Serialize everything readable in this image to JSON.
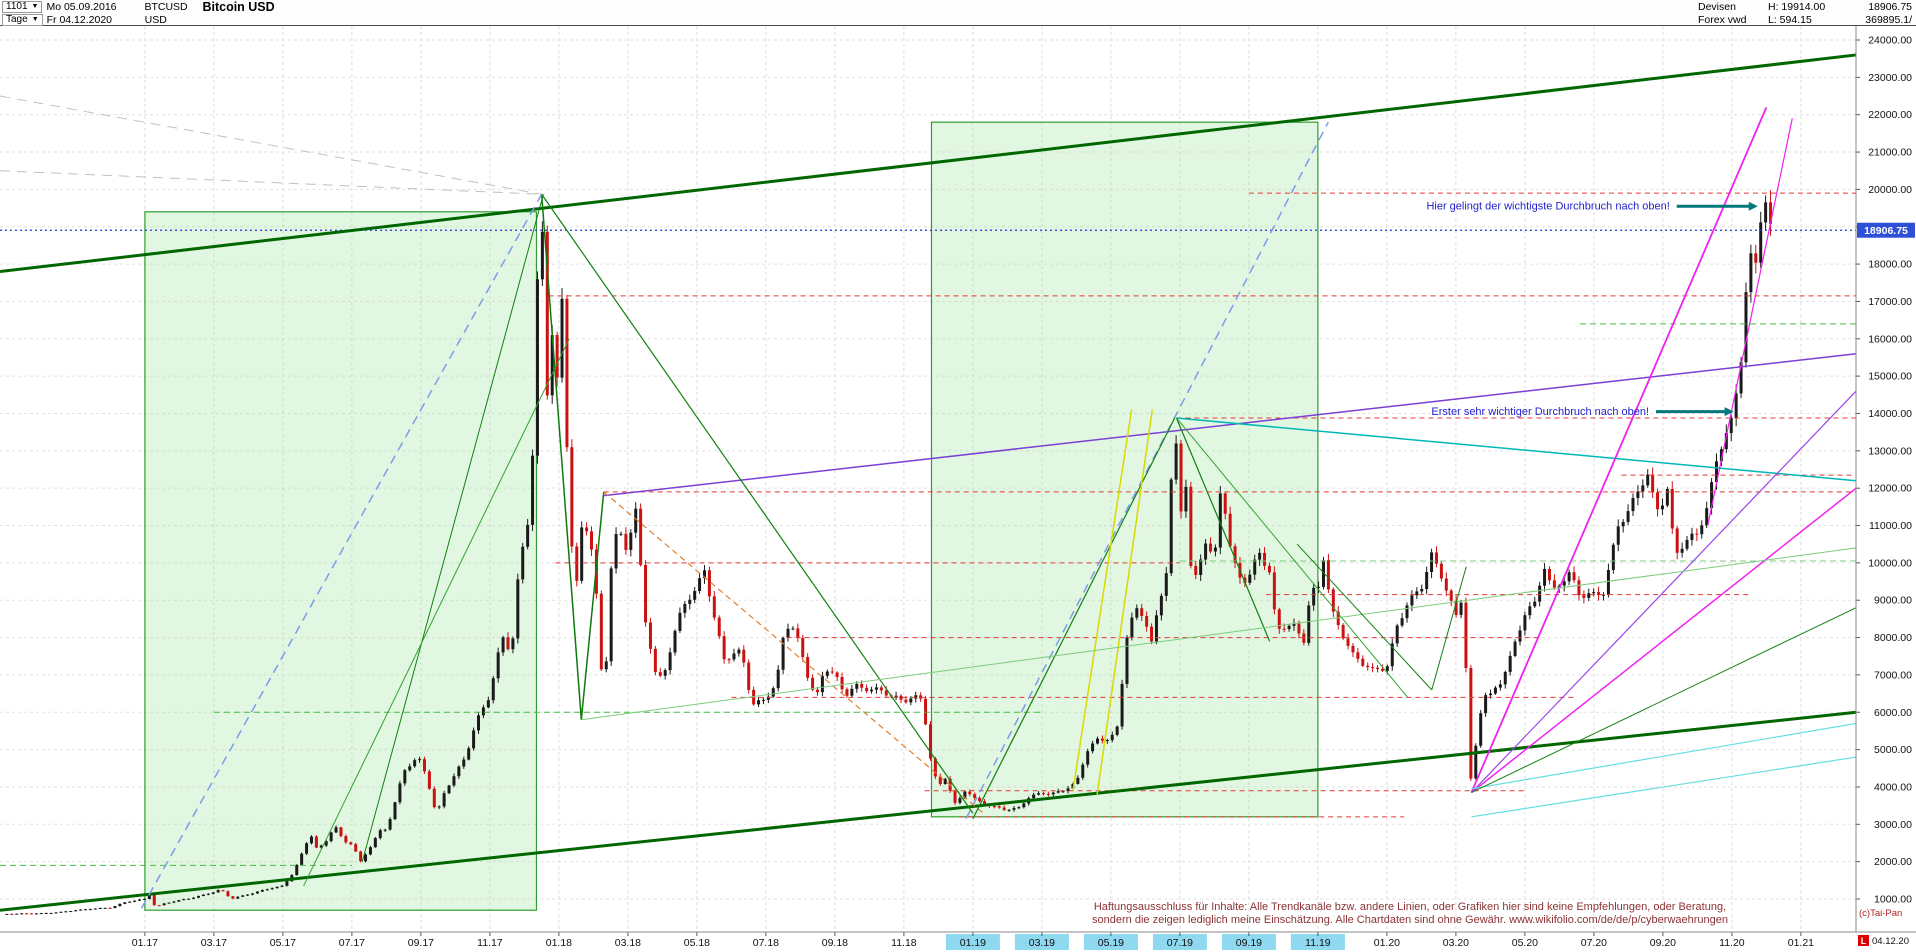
{
  "header": {
    "row1": {
      "id": "1101",
      "date": "Mo 05.09.2016",
      "symbol": "BTCUSD",
      "title": "Bitcoin USD",
      "group": "Devisen",
      "high": "H: 19914.00",
      "last": "18906.75"
    },
    "row2": {
      "period": "Tage",
      "date": "Fr 04.12.2020",
      "currency": "USD",
      "feed": "Forex vwd",
      "low": "L: 594.15",
      "volume": "369895.1/"
    }
  },
  "price_badge": {
    "value": "18906.75",
    "bg": "#2f4fd6",
    "fg": "#ffffff"
  },
  "last_bar_marker": {
    "label": "L",
    "date": "04.12.20",
    "color": "#dd0000"
  },
  "watermark": {
    "text": "(c)Tai-Pan",
    "color": "#b22222"
  },
  "disclaimer": {
    "color": "#8b3333",
    "line1": "Haftungsausschluss für Inhalte: Alle Trendkanäle bzw. andere Linien, oder Grafiken hier sind keine Empfehlungen, oder Beratung,",
    "line2": "sondern die zeigen lediglich meine  Einschätzung. Alle Chartdaten sind ohne Gewähr.  www.wikifolio.com/de/de/p/cyberwaehrungen"
  },
  "chart_data": {
    "type": "candlestick",
    "title": "Bitcoin USD",
    "symbol": "BTCUSD",
    "period": "Tage (daily)",
    "x_origin": "2016-09",
    "x_end": "2020-12-04",
    "y_axis": {
      "min": 1000,
      "max": 24000,
      "step": 1000,
      "format": "0.00"
    },
    "x_labels": [
      "01.17",
      "03.17",
      "05.17",
      "07.17",
      "09.17",
      "11.17",
      "01.18",
      "03.18",
      "05.18",
      "07.18",
      "09.18",
      "11.18",
      "01.19",
      "03.19",
      "05.19",
      "07.19",
      "09.19",
      "11.19",
      "01.20",
      "03.20",
      "05.20",
      "07.20",
      "09.20",
      "11.20",
      "01.21"
    ],
    "x_labels_highlighted": [
      "01.19",
      "03.19",
      "05.19",
      "07.19",
      "09.19",
      "11.19"
    ],
    "highlight_color": "#8ed8f0",
    "last": {
      "date": "04.12.2020",
      "close": 18906.75,
      "session_high": 19914.0,
      "session_low": 594.15
    },
    "candle_colors": {
      "up": "#1a1a1a",
      "down": "#cc1111"
    },
    "price_path_months_price": [
      [
        0,
        600
      ],
      [
        0.5,
        612
      ],
      [
        1,
        616
      ],
      [
        1.5,
        645
      ],
      [
        2,
        700
      ],
      [
        2.5,
        742
      ],
      [
        3,
        768
      ],
      [
        3.4,
        905
      ],
      [
        3.7,
        960
      ],
      [
        4,
        998
      ],
      [
        4.12,
        1130
      ],
      [
        4.3,
        784
      ],
      [
        4.6,
        893
      ],
      [
        5,
        965
      ],
      [
        5.5,
        1058
      ],
      [
        6,
        1190
      ],
      [
        6.2,
        1255
      ],
      [
        6.5,
        1005
      ],
      [
        6.8,
        1080
      ],
      [
        7.3,
        1200
      ],
      [
        7.6,
        1285
      ],
      [
        8,
        1348
      ],
      [
        8.3,
        1700
      ],
      [
        8.6,
        2310
      ],
      [
        8.8,
        2760
      ],
      [
        9,
        2300
      ],
      [
        9.25,
        2550
      ],
      [
        9.5,
        2980
      ],
      [
        9.75,
        2545
      ],
      [
        10,
        2480
      ],
      [
        10.25,
        1990
      ],
      [
        10.5,
        2350
      ],
      [
        10.8,
        2810
      ],
      [
        11,
        2875
      ],
      [
        11.2,
        3420
      ],
      [
        11.5,
        4420
      ],
      [
        11.8,
        4715
      ],
      [
        12,
        4700
      ],
      [
        12.2,
        4160
      ],
      [
        12.45,
        3230
      ],
      [
        12.7,
        3905
      ],
      [
        13,
        4350
      ],
      [
        13.3,
        4820
      ],
      [
        13.6,
        5740
      ],
      [
        14,
        6460
      ],
      [
        14.2,
        7410
      ],
      [
        14.45,
        8210
      ],
      [
        14.6,
        7300
      ],
      [
        14.85,
        9900
      ],
      [
        15.2,
        11640
      ],
      [
        15.35,
        16870
      ],
      [
        15.5,
        19870
      ],
      [
        15.62,
        13820
      ],
      [
        15.78,
        16720
      ],
      [
        15.9,
        14100
      ],
      [
        16.1,
        17150
      ],
      [
        16.3,
        11220
      ],
      [
        16.5,
        9260
      ],
      [
        16.7,
        11310
      ],
      [
        17,
        10200
      ],
      [
        17.15,
        8320
      ],
      [
        17.3,
        6060
      ],
      [
        17.5,
        9820
      ],
      [
        17.7,
        10930
      ],
      [
        18,
        10300
      ],
      [
        18.2,
        11650
      ],
      [
        18.5,
        8520
      ],
      [
        18.8,
        7010
      ],
      [
        19,
        6900
      ],
      [
        19.3,
        7910
      ],
      [
        19.6,
        8910
      ],
      [
        20,
        9250
      ],
      [
        20.2,
        9950
      ],
      [
        20.5,
        8510
      ],
      [
        20.8,
        7420
      ],
      [
        21,
        7500
      ],
      [
        21.3,
        7660
      ],
      [
        21.6,
        6160
      ],
      [
        22,
        6400
      ],
      [
        22.3,
        6710
      ],
      [
        22.55,
        8360
      ],
      [
        22.8,
        8210
      ],
      [
        23,
        7750
      ],
      [
        23.2,
        7010
      ],
      [
        23.45,
        6320
      ],
      [
        23.7,
        7210
      ],
      [
        24,
        7000
      ],
      [
        24.3,
        6460
      ],
      [
        24.6,
        6710
      ],
      [
        25,
        6600
      ],
      [
        25.3,
        6610
      ],
      [
        25.6,
        6450
      ],
      [
        26,
        6300
      ],
      [
        26.3,
        6410
      ],
      [
        26.5,
        6350
      ],
      [
        26.65,
        5620
      ],
      [
        26.8,
        4560
      ],
      [
        27,
        4000
      ],
      [
        27.2,
        4260
      ],
      [
        27.5,
        3500
      ],
      [
        27.8,
        3960
      ],
      [
        28,
        3700
      ],
      [
        28.3,
        3560
      ],
      [
        28.6,
        3460
      ],
      [
        29,
        3400
      ],
      [
        29.3,
        3410
      ],
      [
        29.6,
        3710
      ],
      [
        30,
        3850
      ],
      [
        30.3,
        3810
      ],
      [
        30.6,
        3910
      ],
      [
        31,
        4100
      ],
      [
        31.3,
        4960
      ],
      [
        31.6,
        5260
      ],
      [
        32,
        5300
      ],
      [
        32.2,
        5610
      ],
      [
        32.45,
        8010
      ],
      [
        32.7,
        8760
      ],
      [
        33,
        8550
      ],
      [
        33.15,
        7720
      ],
      [
        33.4,
        8910
      ],
      [
        33.6,
        9710
      ],
      [
        33.85,
        13880
      ],
      [
        33.95,
        11920
      ],
      [
        34,
        10800
      ],
      [
        34.12,
        13110
      ],
      [
        34.3,
        9910
      ],
      [
        34.5,
        9520
      ],
      [
        34.7,
        10710
      ],
      [
        35,
        10000
      ],
      [
        35.2,
        12210
      ],
      [
        35.5,
        10110
      ],
      [
        35.8,
        9510
      ],
      [
        36,
        9600
      ],
      [
        36.3,
        10310
      ],
      [
        36.6,
        9720
      ],
      [
        36.8,
        8210
      ],
      [
        37,
        8300
      ],
      [
        37.3,
        8310
      ],
      [
        37.6,
        7920
      ],
      [
        37.8,
        9310
      ],
      [
        38,
        9150
      ],
      [
        38.12,
        10420
      ],
      [
        38.4,
        8710
      ],
      [
        38.7,
        8110
      ],
      [
        39,
        7550
      ],
      [
        39.3,
        7310
      ],
      [
        39.6,
        7120
      ],
      [
        40,
        7200
      ],
      [
        40.3,
        8310
      ],
      [
        40.6,
        8920
      ],
      [
        41,
        9350
      ],
      [
        41.3,
        10210
      ],
      [
        41.6,
        9620
      ],
      [
        42,
        8550
      ],
      [
        42.2,
        9160
      ],
      [
        42.45,
        3850
      ],
      [
        42.6,
        5310
      ],
      [
        42.8,
        6510
      ],
      [
        43,
        6450
      ],
      [
        43.3,
        6810
      ],
      [
        43.6,
        7520
      ],
      [
        44,
        8650
      ],
      [
        44.3,
        8920
      ],
      [
        44.55,
        9960
      ],
      [
        44.8,
        9210
      ],
      [
        45,
        9450
      ],
      [
        45.3,
        9710
      ],
      [
        45.6,
        9120
      ],
      [
        46,
        9150
      ],
      [
        46.3,
        9220
      ],
      [
        46.7,
        11020
      ],
      [
        47,
        11350
      ],
      [
        47.3,
        12010
      ],
      [
        47.55,
        12360
      ],
      [
        47.8,
        11420
      ],
      [
        48,
        11650
      ],
      [
        48.12,
        12020
      ],
      [
        48.35,
        10220
      ],
      [
        48.6,
        10520
      ],
      [
        49,
        10800
      ],
      [
        49.3,
        11520
      ],
      [
        49.6,
        12960
      ],
      [
        50,
        13800
      ],
      [
        50.25,
        15320
      ],
      [
        50.5,
        18360
      ],
      [
        50.65,
        17660
      ],
      [
        50.85,
        19420
      ],
      [
        51,
        19700
      ],
      [
        51.06,
        18310
      ],
      [
        51.12,
        18906.75
      ]
    ],
    "regions": [
      {
        "t1": 4.0,
        "p1": 700,
        "t2": 15.35,
        "p2": 19400,
        "fill": "rgba(150,225,150,0.28)",
        "stroke": "#2f9e2f"
      },
      {
        "t1": 26.8,
        "p1": 3200,
        "t2": 38.0,
        "p2": 21800,
        "fill": "rgba(150,225,150,0.28)",
        "stroke": "#2f9e2f"
      }
    ],
    "current_price_line": {
      "p": 18906.75,
      "color": "#2233cc",
      "dash": "2,3",
      "w": 1.2
    },
    "hlines": [
      {
        "p": 19900,
        "t1": 36.0,
        "t2": 53.6,
        "color": "#e53935",
        "dash": "5,4",
        "w": 1
      },
      {
        "p": 17150,
        "t1": 15.7,
        "t2": 53.6,
        "color": "#e53935",
        "dash": "5,4",
        "w": 1
      },
      {
        "p": 13880,
        "t1": 33.9,
        "t2": 53.6,
        "color": "#e53935",
        "dash": "5,4",
        "w": 1
      },
      {
        "p": 11900,
        "t1": 17.3,
        "t2": 53.6,
        "color": "#e53935",
        "dash": "5,4",
        "w": 1
      },
      {
        "p": 12350,
        "t1": 46.8,
        "t2": 53.6,
        "color": "#e53935",
        "dash": "5,4",
        "w": 1
      },
      {
        "p": 10000,
        "t1": 15.9,
        "t2": 34.0,
        "color": "#e53935",
        "dash": "5,4",
        "w": 1
      },
      {
        "p": 10050,
        "t1": 34.0,
        "t2": 53.6,
        "color": "#7ccc7c",
        "dash": "6,4",
        "w": 1
      },
      {
        "p": 9150,
        "t1": 36.5,
        "t2": 50.5,
        "color": "#e53935",
        "dash": "5,4",
        "w": 1
      },
      {
        "p": 8000,
        "t1": 22.6,
        "t2": 44.5,
        "color": "#e53935",
        "dash": "5,4",
        "w": 1
      },
      {
        "p": 6400,
        "t1": 21.0,
        "t2": 45.5,
        "color": "#e53935",
        "dash": "5,4",
        "w": 1
      },
      {
        "p": 3900,
        "t1": 26.6,
        "t2": 44.0,
        "color": "#e53935",
        "dash": "5,4",
        "w": 1
      },
      {
        "p": 3200,
        "t1": 27.6,
        "t2": 40.5,
        "color": "#e53935",
        "dash": "5,4",
        "w": 1
      },
      {
        "p": 6000,
        "t1": 6.0,
        "t2": 30.0,
        "color": "#44bb44",
        "dash": "6,4",
        "w": 1
      },
      {
        "p": 16400,
        "t1": 45.6,
        "t2": 53.6,
        "color": "#44bb44",
        "dash": "6,4",
        "w": 1
      },
      {
        "p": 1900,
        "t1": -0.2,
        "t2": 10.0,
        "color": "#44bb44",
        "dash": "6,4",
        "w": 1
      }
    ],
    "trendlines": [
      {
        "t1": -0.2,
        "p1": 17800,
        "t2": 53.6,
        "p2": 23600,
        "color": "#006600",
        "w": 3
      },
      {
        "t1": -0.2,
        "p1": 700,
        "t2": 53.6,
        "p2": 6000,
        "color": "#006600",
        "w": 3
      },
      {
        "t1": 15.5,
        "p1": 19870,
        "t2": 16.65,
        "p2": 5800,
        "color": "#0e7a0e",
        "w": 1.5
      },
      {
        "t1": 16.65,
        "p1": 5800,
        "t2": 17.3,
        "p2": 11900,
        "color": "#0e7a0e",
        "w": 1.5
      },
      {
        "t1": 17.3,
        "p1": 11800,
        "t2": 53.6,
        "p2": 15600,
        "color": "#7a3fd4",
        "w": 1.5
      },
      {
        "t1": 33.9,
        "p1": 13880,
        "t2": 53.6,
        "p2": 12200,
        "color": "#00b7b7",
        "w": 1.5
      },
      {
        "t1": 3.9,
        "p1": 750,
        "t2": 15.5,
        "p2": 19870,
        "color": "#7d9bea",
        "w": 1.5,
        "dash": "9,6"
      },
      {
        "t1": 27.8,
        "p1": 3150,
        "t2": 38.3,
        "p2": 21800,
        "color": "#7d9bea",
        "w": 1.5,
        "dash": "9,6"
      },
      {
        "t1": -0.2,
        "p1": 22500,
        "t2": 15.5,
        "p2": 19870,
        "color": "#c0c0c0",
        "w": 1,
        "dash": "10,7"
      },
      {
        "t1": -0.2,
        "p1": 20500,
        "t2": 15.5,
        "p2": 19870,
        "color": "#c0c0c0",
        "w": 1,
        "dash": "10,7"
      },
      {
        "t1": 17.3,
        "p1": 11900,
        "t2": 28.3,
        "p2": 3300,
        "color": "#e08030",
        "w": 1.2,
        "dash": "6,4"
      },
      {
        "t1": 15.5,
        "p1": 19870,
        "t2": 28.0,
        "p2": 3300,
        "color": "#128012",
        "w": 1.2
      },
      {
        "t1": 28.0,
        "p1": 3150,
        "t2": 33.85,
        "p2": 13880,
        "color": "#128012",
        "w": 1.2
      },
      {
        "t1": 33.9,
        "p1": 13880,
        "t2": 36.6,
        "p2": 7900,
        "color": "#128012",
        "w": 1.2
      },
      {
        "t1": 33.9,
        "p1": 13880,
        "t2": 40.6,
        "p2": 6400,
        "color": "#2fa32f",
        "w": 1
      },
      {
        "t1": 30.9,
        "p1": 3900,
        "t2": 32.6,
        "p2": 14100,
        "color": "#d9d900",
        "w": 1.5
      },
      {
        "t1": 31.6,
        "p1": 3800,
        "t2": 33.2,
        "p2": 14100,
        "color": "#d9d900",
        "w": 1.5
      },
      {
        "t1": 42.45,
        "p1": 3850,
        "t2": 51.0,
        "p2": 22200,
        "color": "#f020f0",
        "w": 1.8
      },
      {
        "t1": 42.45,
        "p1": 3850,
        "t2": 53.6,
        "p2": 12000,
        "color": "#f020f0",
        "w": 1.5
      },
      {
        "t1": 42.45,
        "p1": 3850,
        "t2": 53.6,
        "p2": 14600,
        "color": "#9a45e8",
        "w": 1.2
      },
      {
        "t1": 42.45,
        "p1": 3950,
        "t2": 53.6,
        "p2": 5700,
        "color": "#63dede",
        "w": 1.2
      },
      {
        "t1": 42.45,
        "p1": 3200,
        "t2": 53.6,
        "p2": 4800,
        "color": "#63dede",
        "w": 1.2
      },
      {
        "t1": 16.65,
        "p1": 5800,
        "t2": 53.6,
        "p2": 10400,
        "color": "#7ccc7c",
        "w": 1
      },
      {
        "t1": 37.4,
        "p1": 10500,
        "t2": 41.3,
        "p2": 6600,
        "color": "#128012",
        "w": 1
      },
      {
        "t1": 41.3,
        "p1": 6600,
        "t2": 42.3,
        "p2": 9900,
        "color": "#128012",
        "w": 1
      },
      {
        "t1": 10.3,
        "p1": 2000,
        "t2": 15.55,
        "p2": 19870,
        "color": "#128012",
        "w": 1
      },
      {
        "t1": 8.6,
        "p1": 1350,
        "t2": 16.3,
        "p2": 16000,
        "color": "#2fa32f",
        "w": 1
      },
      {
        "t1": 42.45,
        "p1": 3850,
        "t2": 53.6,
        "p2": 8800,
        "color": "#128012",
        "w": 1
      },
      {
        "t1": 49.3,
        "p1": 11000,
        "t2": 51.75,
        "p2": 21900,
        "color": "#f020f0",
        "w": 1.2
      }
    ],
    "annotations": [
      {
        "text": "Hier gelingt der wichtigste Durchbruch nach oben!",
        "color": "#2222cc",
        "t_text_end": 48.2,
        "p": 19550,
        "arrow": {
          "t1": 48.4,
          "t2": 50.75,
          "color": "#00797d"
        }
      },
      {
        "text": "Erster sehr wichtiger Durchbruch nach oben!",
        "color": "#2222cc",
        "t_text_end": 47.6,
        "p": 14050,
        "arrow": {
          "t1": 47.8,
          "t2": 50.05,
          "color": "#00797d"
        }
      }
    ]
  }
}
